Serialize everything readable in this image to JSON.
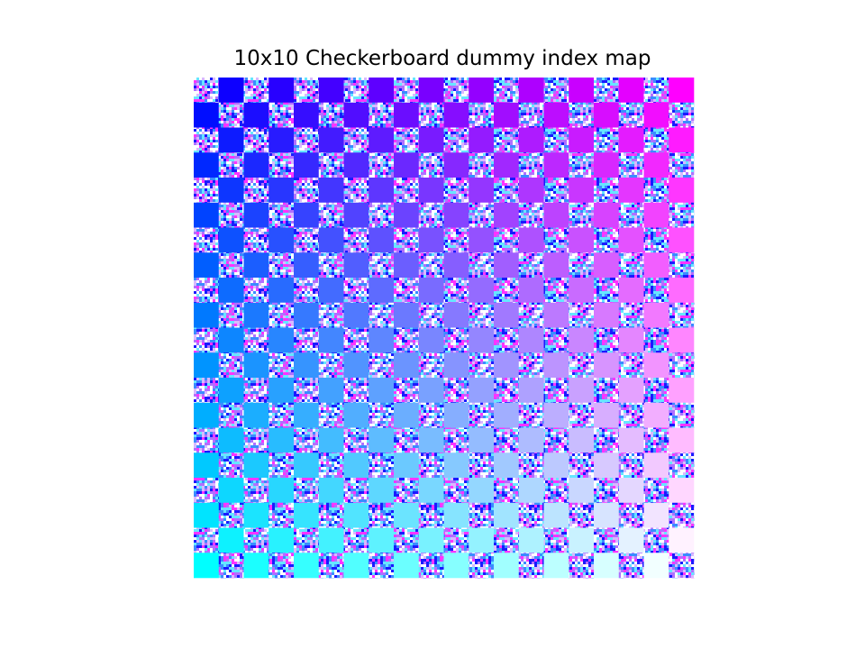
{
  "chart_data": {
    "type": "heatmap",
    "title": "10x10 Checkerboard dummy index map",
    "xlabel": "",
    "ylabel": "",
    "axes_visible": false,
    "grid": false,
    "legend": "none",
    "grid_size": [
      20,
      20
    ],
    "pattern": "checkerboard",
    "solid_cell_colormap": "cool + gradient to white",
    "noise_cell_fill": "random noise",
    "corner_colors": {
      "top_left": "#0000ff",
      "top_right": "#ff00ff",
      "bottom_left": "#00ffff",
      "bottom_right": "#ffffff"
    },
    "noise_palette": [
      "#ff33ff",
      "#1a1aff",
      "#66e6ff",
      "#b070ff",
      "#ffffff",
      "#3a8cff",
      "#d8b8ff"
    ]
  }
}
